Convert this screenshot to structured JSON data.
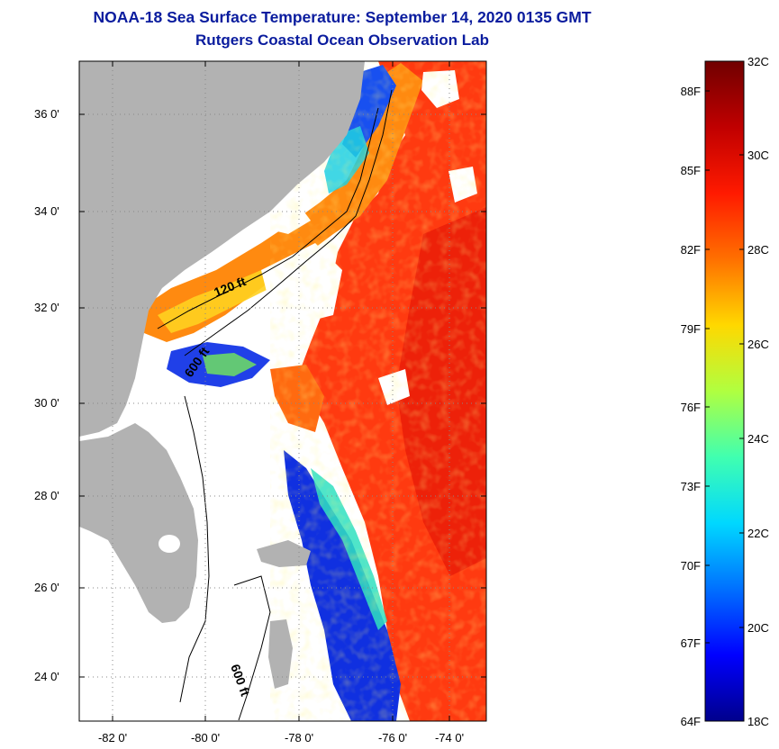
{
  "header": {
    "title": "NOAA-18 Sea Surface Temperature:  September 14, 2020 0135 GMT",
    "subtitle": "Rutgers Coastal Ocean Observation Lab"
  },
  "map": {
    "lat_ticks": [
      "36 0'",
      "34 0'",
      "32 0'",
      "30 0'",
      "28 0'",
      "26 0'",
      "24 0'"
    ],
    "lon_ticks": [
      "-82 0'",
      "-80 0'",
      "-78 0'",
      "-76 0'",
      "-74 0'"
    ],
    "contours": [
      {
        "label": "120 ft"
      },
      {
        "label": "600 ft"
      },
      {
        "label": "600 ft"
      }
    ],
    "colors": {
      "land": "#b2b2b2",
      "cloud": "#ffffff",
      "warm": "#ff3a10",
      "cool": "#1030e0"
    }
  },
  "colorbar": {
    "celsius_labels": [
      "32C",
      "30C",
      "28C",
      "26C",
      "24C",
      "22C",
      "20C",
      "18C"
    ],
    "fahrenheit_labels": [
      "88F",
      "85F",
      "82F",
      "79F",
      "76F",
      "73F",
      "70F",
      "67F",
      "64F"
    ],
    "range_c": [
      18,
      32
    ],
    "colors": [
      "#00008c",
      "#0000ff",
      "#0070ff",
      "#00d8ff",
      "#40ffb0",
      "#b0ff40",
      "#ffd800",
      "#ff7000",
      "#ff1a00",
      "#c00000",
      "#700000"
    ]
  }
}
